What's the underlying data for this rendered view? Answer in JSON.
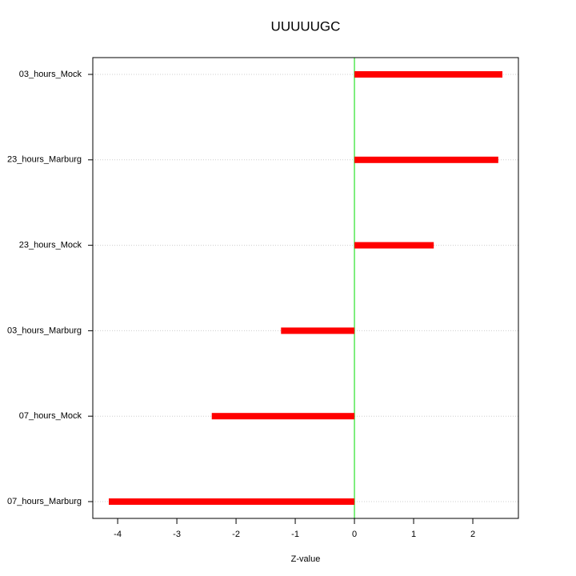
{
  "chart_data": {
    "type": "bar",
    "orientation": "horizontal",
    "title": "UUUUUGC",
    "x_label": "Z-value",
    "categories": [
      "03_hours_Mock",
      "23_hours_Marburg",
      "23_hours_Mock",
      "03_hours_Marburg",
      "07_hours_Mock",
      "07_hours_Marburg"
    ],
    "values": [
      2.5,
      2.43,
      1.34,
      -1.24,
      -2.41,
      -4.15
    ],
    "color": "#ff0000",
    "zero_line_color": "#00dd00",
    "xlim": [
      -4.42,
      2.77
    ],
    "xticks": [
      -4,
      -3,
      -2,
      -1,
      0,
      1,
      2
    ],
    "grid": true
  }
}
